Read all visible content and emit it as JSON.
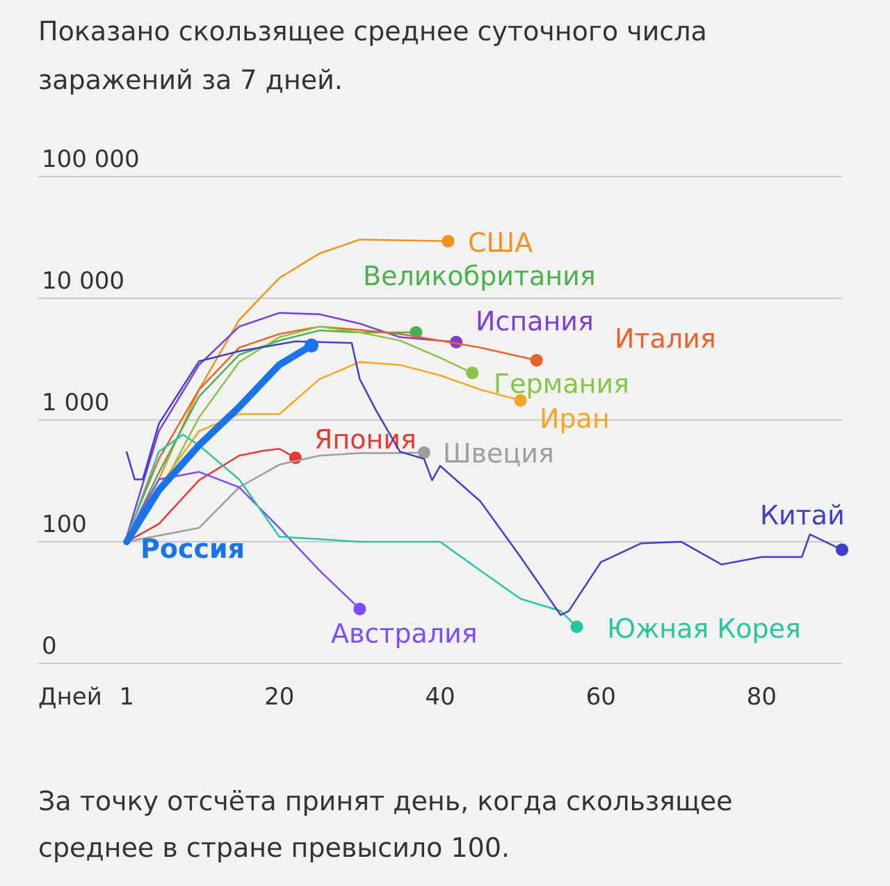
{
  "header": {
    "lines": [
      "Показано скользящее среднее суточного числа",
      "заражений за 7 дней."
    ]
  },
  "footer": {
    "lines": [
      "За точку отсчёта принят день, когда скользящее",
      "среднее в стране превысило 100."
    ]
  },
  "chart_data": {
    "type": "line",
    "log_y": true,
    "grid": true,
    "x_label": "Дней",
    "xlim": [
      -10,
      90
    ],
    "xticks": [
      1,
      20,
      40,
      60,
      80
    ],
    "ylim": [
      10,
      100000
    ],
    "yticks": [
      {
        "value": 100000,
        "label": "100 000"
      },
      {
        "value": 10000,
        "label": "10 000"
      },
      {
        "value": 1000,
        "label": "1 000"
      },
      100,
      0
    ],
    "series": [
      {
        "name": "США",
        "color": "#f0921e",
        "x": [
          1,
          5,
          10,
          15,
          20,
          25,
          30,
          35,
          41
        ],
        "values": [
          105,
          325,
          1780,
          6650,
          14700,
          23400,
          30400,
          30000,
          29500
        ]
      },
      {
        "name": "Великобритания",
        "color": "#4caf50",
        "x": [
          1,
          5,
          10,
          15,
          20,
          25,
          30,
          37
        ],
        "values": [
          105,
          370,
          1560,
          3440,
          4500,
          5450,
          5250,
          5250
        ]
      },
      {
        "name": "Испания",
        "color": "#7b3fd6",
        "x": [
          1,
          5,
          10,
          15,
          20,
          25,
          30,
          35,
          42
        ],
        "values": [
          110,
          810,
          2840,
          5860,
          7600,
          7400,
          6200,
          4800,
          4370
        ]
      },
      {
        "name": "Италия",
        "color": "#e8622a",
        "x": [
          1,
          5,
          10,
          15,
          20,
          25,
          30,
          35,
          40,
          45,
          52
        ],
        "values": [
          110,
          480,
          1780,
          3940,
          5100,
          5860,
          5500,
          5100,
          4500,
          3940,
          3100
        ]
      },
      {
        "name": "Германия",
        "color": "#8bc34a",
        "x": [
          1,
          5,
          10,
          15,
          20,
          25,
          30,
          35,
          40,
          44
        ],
        "values": [
          100,
          250,
          1050,
          3000,
          4800,
          5860,
          5250,
          4500,
          3250,
          2440
        ]
      },
      {
        "name": "Иран",
        "color": "#f5a623",
        "x": [
          1,
          5,
          10,
          15,
          20,
          25,
          30,
          35,
          40,
          45,
          50
        ],
        "values": [
          105,
          280,
          810,
          1120,
          1120,
          2170,
          3000,
          2840,
          2330,
          1780,
          1450
        ]
      },
      {
        "name": "Япония",
        "color": "#e53935",
        "x": [
          1,
          5,
          10,
          15,
          18,
          20,
          22
        ],
        "values": [
          100,
          140,
          320,
          510,
          560,
          580,
          490
        ]
      },
      {
        "name": "Швеция",
        "color": "#9e9e9e",
        "x": [
          1,
          10,
          15,
          20,
          25,
          30,
          35,
          38
        ],
        "values": [
          100,
          130,
          280,
          430,
          510,
          535,
          535,
          540
        ]
      },
      {
        "name": "Австралия",
        "color": "#7c4dff",
        "x": [
          1,
          5,
          10,
          15,
          20,
          25,
          30
        ],
        "values": [
          110,
          325,
          375,
          280,
          130,
          58,
          28
        ]
      },
      {
        "name": "Южная Корея",
        "color": "#26c6a0",
        "x": [
          1,
          5,
          8,
          10,
          15,
          20,
          25,
          30,
          40,
          45,
          50,
          55,
          57
        ],
        "values": [
          105,
          550,
          760,
          620,
          325,
          110,
          105,
          100,
          100,
          58,
          34,
          27,
          20
        ]
      },
      {
        "name": "Китай",
        "color": "#3f3fc8",
        "x": [
          1,
          2,
          3,
          5,
          10,
          15,
          22,
          29,
          30,
          32,
          35,
          38,
          39,
          40,
          45,
          50,
          55,
          56,
          60,
          65,
          70,
          75,
          80,
          85,
          86,
          90
        ],
        "values": [
          545,
          325,
          325,
          930,
          3040,
          3680,
          4430,
          4300,
          2170,
          1210,
          550,
          480,
          320,
          420,
          215,
          75,
          25,
          27,
          68,
          97,
          100,
          65,
          75,
          75,
          115,
          86
        ]
      },
      {
        "name": "Россия",
        "color": "#1a73e8",
        "x": [
          1,
          5,
          10,
          15,
          20,
          24
        ],
        "values": [
          100,
          265,
          620,
          1280,
          2850,
          4100
        ]
      }
    ]
  }
}
